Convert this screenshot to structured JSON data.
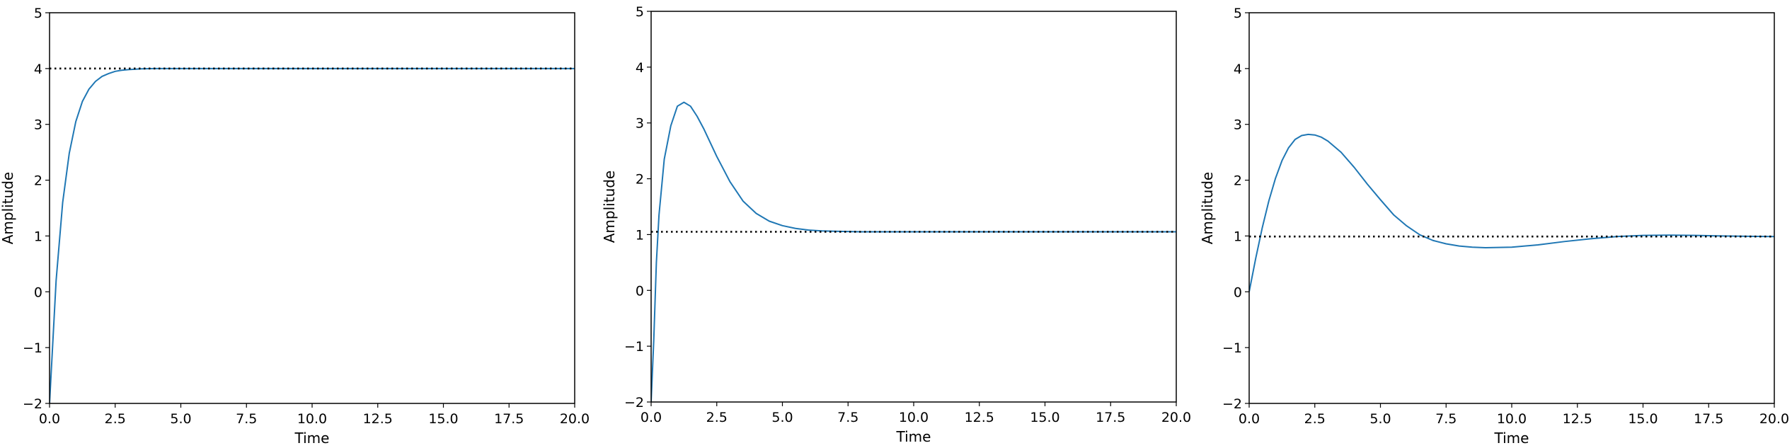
{
  "chart_data": [
    {
      "type": "line",
      "title": "",
      "xlabel": "Time",
      "ylabel": "Amplitude",
      "xlim": [
        0,
        20
      ],
      "ylim": [
        -2,
        5
      ],
      "xticks": [
        "0.0",
        "2.5",
        "5.0",
        "7.5",
        "10.0",
        "12.5",
        "15.0",
        "17.5",
        "20.0"
      ],
      "yticks": [
        "−2",
        "−1",
        "0",
        "1",
        "2",
        "3",
        "4",
        "5"
      ],
      "grid": false,
      "series": [
        {
          "style": "solid",
          "color": "#1f77b4",
          "x": [
            0,
            0.25,
            0.5,
            0.75,
            1.0,
            1.25,
            1.5,
            1.75,
            2.0,
            2.25,
            2.5,
            2.75,
            3.0,
            3.5,
            4.0,
            5.0,
            6.0,
            8.0,
            10.0,
            12.5,
            15.0,
            17.5,
            20.0
          ],
          "y": [
            -2.0,
            0.2,
            1.6,
            2.48,
            3.05,
            3.41,
            3.63,
            3.77,
            3.86,
            3.91,
            3.95,
            3.97,
            3.98,
            3.995,
            4.0,
            4.0,
            4.0,
            4.0,
            4.0,
            4.0,
            4.0,
            4.0,
            4.0
          ]
        },
        {
          "style": "dotted",
          "color": "#000000",
          "x": [
            0,
            20
          ],
          "y": [
            4.0,
            4.0
          ]
        }
      ]
    },
    {
      "type": "line",
      "title": "",
      "xlabel": "Time",
      "ylabel": "Amplitude",
      "xlim": [
        0,
        20
      ],
      "ylim": [
        -2,
        5
      ],
      "xticks": [
        "0.0",
        "2.5",
        "5.0",
        "7.5",
        "10.0",
        "12.5",
        "15.0",
        "17.5",
        "20.0"
      ],
      "yticks": [
        "−2",
        "−1",
        "0",
        "1",
        "2",
        "3",
        "4",
        "5"
      ],
      "grid": false,
      "series": [
        {
          "style": "solid",
          "color": "#1f77b4",
          "x": [
            0,
            0.1,
            0.2,
            0.3,
            0.5,
            0.75,
            1.0,
            1.25,
            1.5,
            1.75,
            2.0,
            2.5,
            3.0,
            3.5,
            4.0,
            4.5,
            5.0,
            5.5,
            6.0,
            6.5,
            7.0,
            7.5,
            8.0,
            10.0,
            12.5,
            15.0,
            17.5,
            20.0
          ],
          "y": [
            -2.0,
            -0.9,
            0.5,
            1.35,
            2.35,
            2.95,
            3.3,
            3.37,
            3.3,
            3.12,
            2.9,
            2.4,
            1.95,
            1.6,
            1.38,
            1.24,
            1.16,
            1.11,
            1.08,
            1.065,
            1.06,
            1.055,
            1.05,
            1.05,
            1.05,
            1.05,
            1.05,
            1.05
          ]
        },
        {
          "style": "dotted",
          "color": "#000000",
          "x": [
            0,
            20
          ],
          "y": [
            1.05,
            1.05
          ]
        }
      ]
    },
    {
      "type": "line",
      "title": "",
      "xlabel": "Time",
      "ylabel": "Amplitude",
      "xlim": [
        0,
        20
      ],
      "ylim": [
        -2,
        5
      ],
      "xticks": [
        "0.0",
        "2.5",
        "5.0",
        "7.5",
        "10.0",
        "12.5",
        "15.0",
        "17.5",
        "20.0"
      ],
      "yticks": [
        "−2",
        "−1",
        "0",
        "1",
        "2",
        "3",
        "4",
        "5"
      ],
      "grid": false,
      "series": [
        {
          "style": "solid",
          "color": "#1f77b4",
          "x": [
            0,
            0.25,
            0.5,
            0.75,
            1.0,
            1.25,
            1.5,
            1.75,
            2.0,
            2.25,
            2.5,
            2.75,
            3.0,
            3.5,
            4.0,
            4.5,
            5.0,
            5.5,
            6.0,
            6.5,
            7.0,
            7.5,
            8.0,
            8.5,
            9.0,
            9.5,
            10.0,
            11.0,
            12.0,
            13.0,
            14.0,
            15.0,
            16.0,
            17.0,
            18.0,
            19.0,
            20.0
          ],
          "y": [
            0.0,
            0.6,
            1.15,
            1.63,
            2.03,
            2.35,
            2.58,
            2.73,
            2.8,
            2.82,
            2.81,
            2.77,
            2.7,
            2.5,
            2.23,
            1.93,
            1.65,
            1.38,
            1.18,
            1.02,
            0.92,
            0.86,
            0.82,
            0.8,
            0.79,
            0.795,
            0.8,
            0.84,
            0.9,
            0.95,
            0.99,
            1.01,
            1.015,
            1.01,
            1.0,
            0.995,
            0.99
          ]
        },
        {
          "style": "dotted",
          "color": "#000000",
          "x": [
            0,
            20
          ],
          "y": [
            0.99,
            0.99
          ]
        }
      ]
    }
  ]
}
